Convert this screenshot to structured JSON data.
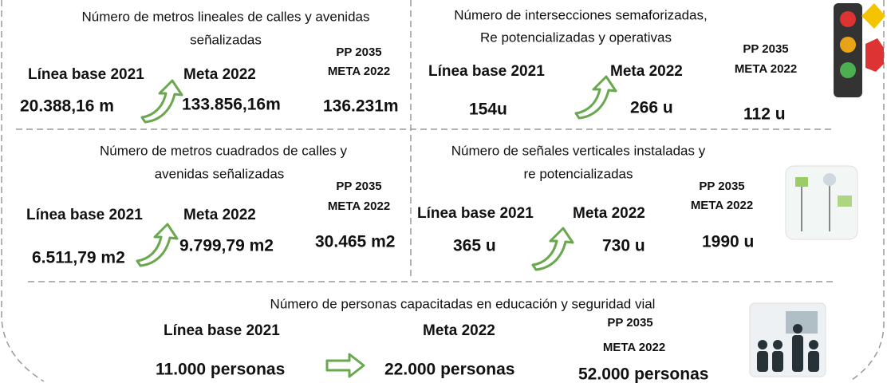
{
  "panels": [
    {
      "title_lines": [
        "Número de metros lineales de calles y avenidas",
        "señalizadas"
      ],
      "baseline_label": "Línea base 2021",
      "meta_label": "Meta 2022",
      "pp_label": [
        "PP 2035",
        "META 2022"
      ],
      "baseline_value": "20.388,16  m",
      "meta_value": "133.856,16m",
      "pp_value": "136.231m"
    },
    {
      "title_lines": [
        "Número de intersecciones semaforizadas,",
        "Re potencializadas y operativas"
      ],
      "baseline_label": "Línea base 2021",
      "meta_label": "Meta 2022",
      "pp_label": [
        "PP 2035",
        "META 2022"
      ],
      "baseline_value": "154u",
      "meta_value": "266 u",
      "pp_value": "112 u"
    },
    {
      "title_lines": [
        "Número de metros cuadrados  de calles y",
        "avenidas señalizadas"
      ],
      "baseline_label": "Línea base 2021",
      "meta_label": "Meta 2022",
      "pp_label": [
        "PP 2035",
        "META 2022"
      ],
      "baseline_value": "6.511,79 m2",
      "meta_value": "9.799,79 m2",
      "pp_value": "30.465 m2"
    },
    {
      "title_lines": [
        "Número de señales  verticales instaladas y",
        "re potencializadas"
      ],
      "baseline_label": "Línea base 2021",
      "meta_label": "Meta 2022",
      "pp_label": [
        "PP 2035",
        "META 2022"
      ],
      "baseline_value": "365 u",
      "meta_value": "730 u",
      "pp_value": "1990 u"
    },
    {
      "title_lines": [
        "Número de personas capacitadas en educación y seguridad vial"
      ],
      "baseline_label": "Línea base 2021",
      "meta_label": "Meta 2022",
      "pp_label": [
        "PP 2035",
        "META 2022"
      ],
      "baseline_value": "11.000  personas",
      "meta_value": "22.000  personas",
      "pp_value": "52.000  personas"
    }
  ]
}
